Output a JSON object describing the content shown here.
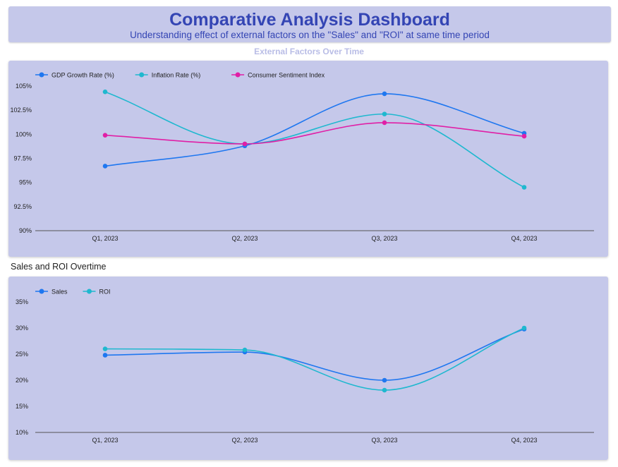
{
  "header": {
    "title": "Comparative Analysis Dashboard",
    "subtitle": "Understanding effect of external factors on the \"Sales\" and \"ROI\" at same time period"
  },
  "sections": {
    "external_title": "External Factors Over Time",
    "sales_title": "Sales and ROI Overtime"
  },
  "chart_data": [
    {
      "type": "line",
      "title": "External Factors Over Time",
      "categories": [
        "Q1, 2023",
        "Q2, 2023",
        "Q3, 2023",
        "Q4, 2023"
      ],
      "ylim": [
        90,
        105
      ],
      "yticks": [
        90,
        92.5,
        95,
        97.5,
        100,
        102.5,
        105
      ],
      "ytick_labels": [
        "90%",
        "92.5%",
        "95%",
        "97.5%",
        "100%",
        "102.5%",
        "105%"
      ],
      "legend_position": "top-left",
      "grid": false,
      "series": [
        {
          "name": "GDP Growth Rate (%)",
          "color": "#1f77f0",
          "values": [
            96.7,
            98.8,
            104.2,
            100.1
          ]
        },
        {
          "name": "Inflation Rate (%)",
          "color": "#1fb8cf",
          "values": [
            104.4,
            99.0,
            102.1,
            94.5
          ]
        },
        {
          "name": "Consumer Sentiment Index",
          "color": "#e01fa6",
          "values": [
            99.9,
            99.0,
            101.2,
            99.8
          ]
        }
      ]
    },
    {
      "type": "line",
      "title": "Sales and ROI Overtime",
      "categories": [
        "Q1, 2023",
        "Q2, 2023",
        "Q3, 2023",
        "Q4, 2023"
      ],
      "ylim": [
        10,
        35
      ],
      "yticks": [
        10,
        15,
        20,
        25,
        30,
        35
      ],
      "ytick_labels": [
        "10%",
        "15%",
        "20%",
        "25%",
        "30%",
        "35%"
      ],
      "legend_position": "top-left",
      "grid": false,
      "series": [
        {
          "name": "Sales",
          "color": "#1f77f0",
          "values": [
            24.8,
            25.4,
            20.0,
            29.8
          ]
        },
        {
          "name": "ROI",
          "color": "#1fb8cf",
          "values": [
            26.0,
            25.8,
            18.1,
            30.0
          ]
        }
      ]
    }
  ]
}
